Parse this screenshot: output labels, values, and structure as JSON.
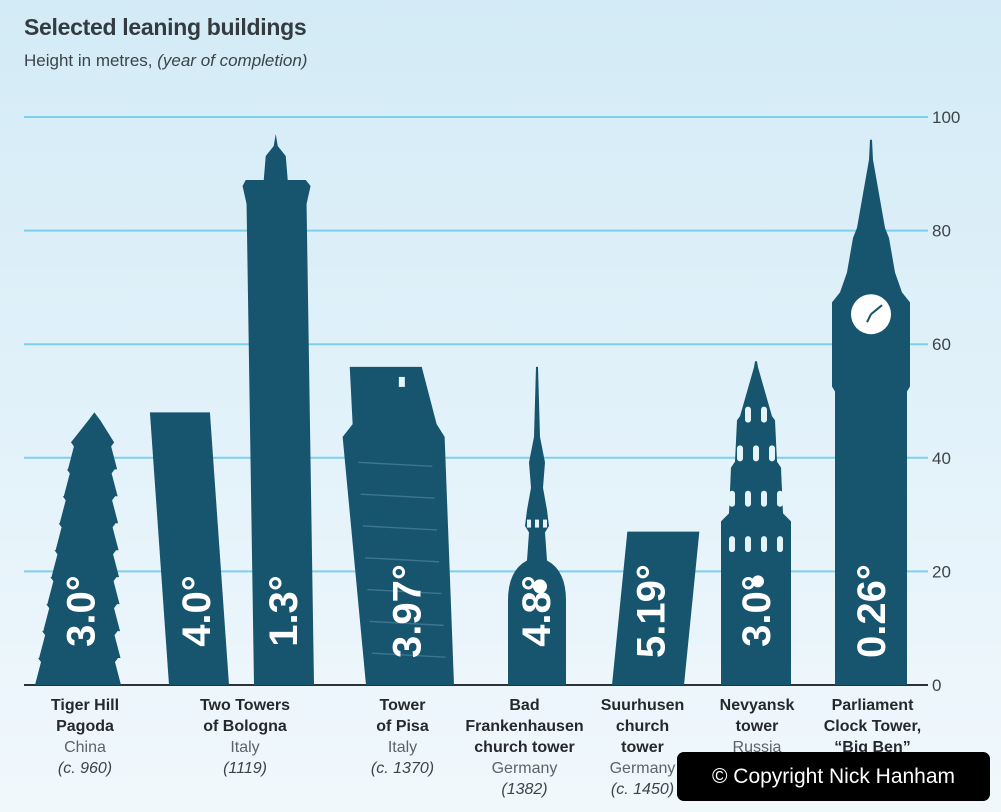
{
  "chart_data": {
    "type": "bar",
    "title": "Selected leaning buildings",
    "subtitle_main": "Height in metres,",
    "subtitle_italic": "(year of completion)",
    "ylim": [
      0,
      100
    ],
    "yticks": [
      0,
      20,
      40,
      60,
      80,
      100
    ],
    "grid": true,
    "bars": [
      {
        "group": "Tiger Hill Pagoda",
        "value": 48,
        "angle": "3.0°"
      },
      {
        "group": "Two Towers of Bologna",
        "value": 48,
        "angle": "4.0°"
      },
      {
        "group": "Two Towers of Bologna",
        "value": 97,
        "angle": "1.3°"
      },
      {
        "group": "Tower of Pisa",
        "value": 56,
        "angle": "3.97°"
      },
      {
        "group": "Bad Frankenhausen church tower",
        "value": 56,
        "angle": "4.8°"
      },
      {
        "group": "Suurhusen church tower",
        "value": 27,
        "angle": "5.19°"
      },
      {
        "group": "Nevyansk tower",
        "value": 57,
        "angle": "3.0°"
      },
      {
        "group": "Parliament Clock Tower, “Big Ben”",
        "value": 96,
        "angle": "0.26°"
      }
    ],
    "labels": [
      {
        "name1": "Tiger Hill",
        "name2": "Pagoda",
        "name3": "",
        "country": "China",
        "year": "(c. 960)"
      },
      {
        "name1": "Two Towers",
        "name2": "of Bologna",
        "name3": "",
        "country": "Italy",
        "year": "(1119)"
      },
      {
        "name1": "Tower",
        "name2": "of Pisa",
        "name3": "",
        "country": "Italy",
        "year": "(c. 1370)"
      },
      {
        "name1": "Bad",
        "name2": "Frankenhausen",
        "name3": "church tower",
        "country": "Germany",
        "year": "(1382)"
      },
      {
        "name1": "Suurhusen",
        "name2": "church",
        "name3": "tower",
        "country": "Germany",
        "year": "(c. 1450)"
      },
      {
        "name1": "Nevyansk",
        "name2": "tower",
        "name3": "",
        "country": "Russia",
        "year": ""
      },
      {
        "name1": "Parliament",
        "name2": "Clock Tower,",
        "name3": "“Big Ben”",
        "country": "",
        "year": ""
      }
    ]
  },
  "colors": {
    "building": "#17546e",
    "gridline": "#7cd0ee",
    "clock_face": "#ffffff"
  },
  "watermark": {
    "text": "© Copyright Nick Hanham"
  }
}
